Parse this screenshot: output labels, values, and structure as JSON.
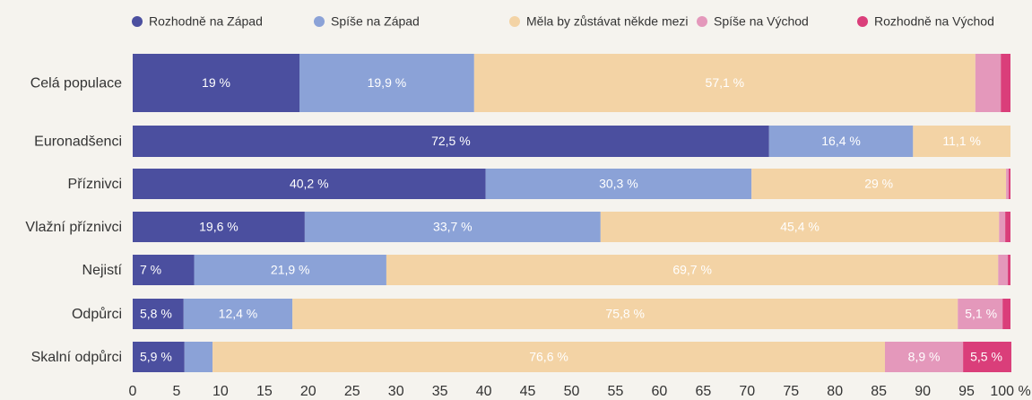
{
  "chart_data": {
    "type": "stacked-bar-horizontal",
    "categories": [
      "Celá populace",
      "Euronadšenci",
      "Příznivci",
      "Vlažní příznivci",
      "Nejistí",
      "Odpůrci",
      "Skalní odpůrci"
    ],
    "series": [
      {
        "name": "Rozhodně na Západ",
        "color": "#4b4f9f",
        "values": [
          19,
          72.5,
          40.2,
          19.6,
          7,
          5.8,
          5.9
        ],
        "value_labels": [
          "19 %",
          "72,5 %",
          "40,2 %",
          "19,6 %",
          "7 %",
          "5,8 %",
          "5,9 %"
        ]
      },
      {
        "name": "Spíše na Západ",
        "color": "#8ba2d7",
        "values": [
          19.9,
          16.4,
          30.3,
          33.7,
          21.9,
          12.4,
          3.2
        ],
        "value_labels": [
          "19,9 %",
          "16,4 %",
          "30,3 %",
          "33,7 %",
          "21,9 %",
          "12,4 %",
          null
        ]
      },
      {
        "name": "Měla by zůstávat někde mezi",
        "color": "#f3d3a5",
        "values": [
          57.1,
          11.1,
          29,
          45.4,
          69.7,
          75.8,
          76.6
        ],
        "value_labels": [
          "57,1 %",
          "11,1 %",
          "29 %",
          "45,4 %",
          "69,7 %",
          "75,8 %",
          "76,6 %"
        ]
      },
      {
        "name": "Spíše na Východ",
        "color": "#e498bb",
        "values": [
          2.9,
          0,
          0.3,
          0.7,
          1.1,
          5.1,
          8.9
        ],
        "value_labels": [
          null,
          null,
          null,
          null,
          null,
          "5,1 %",
          "8,9 %"
        ]
      },
      {
        "name": "Rozhodně na Východ",
        "color": "#da3e7a",
        "values": [
          1.1,
          0,
          0.2,
          0.6,
          0.3,
          0.9,
          5.5
        ],
        "value_labels": [
          null,
          null,
          null,
          null,
          null,
          null,
          "5,5 %"
        ]
      }
    ],
    "xlim": [
      0,
      100
    ],
    "xticks": [
      0,
      5,
      10,
      15,
      20,
      25,
      30,
      35,
      40,
      45,
      50,
      55,
      60,
      65,
      70,
      75,
      80,
      85,
      90,
      95,
      {
        "value": 100,
        "label": "100 %"
      }
    ]
  }
}
